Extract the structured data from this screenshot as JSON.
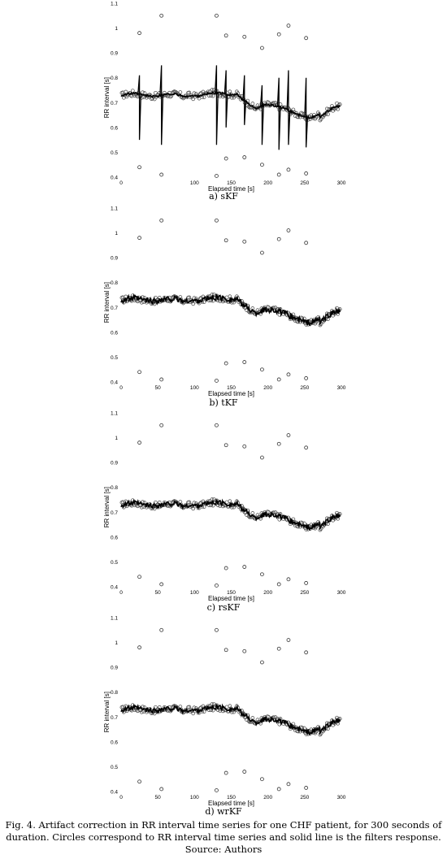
{
  "caption": "Fig. 4. Artifact correction in RR interval time series for one CHF patient, for 300 seconds of duration. Circles correspond to RR interval time series and solid line is the filters response. Source: Authors",
  "chart_data": [
    {
      "type": "scatter",
      "panel_label": "a) sKF",
      "xlabel": "Elapsed time [s]",
      "ylabel": "RR interval [s]",
      "xlim": [
        0,
        300
      ],
      "ylim": [
        0.4,
        1.1
      ],
      "xticks": [
        "0",
        "100",
        "150",
        "200",
        "250",
        "300"
      ],
      "yticks": [
        "0.4",
        "0.5",
        "0.6",
        "0.7",
        "0.8",
        "0.9",
        "1",
        "1.1"
      ],
      "outliers": {
        "x": [
          25,
          55,
          130,
          143,
          168,
          192,
          215,
          228,
          252
        ],
        "y": [
          0.98,
          1.05,
          1.05,
          0.97,
          0.965,
          0.92,
          0.975,
          1.01,
          0.96
        ]
      },
      "low_outliers": {
        "x": [
          25,
          55,
          130,
          143,
          168,
          192,
          215,
          228,
          252
        ],
        "y": [
          0.44,
          0.41,
          0.405,
          0.475,
          0.48,
          0.45,
          0.41,
          0.43,
          0.415
        ]
      },
      "filter_spikes": {
        "x": [
          25,
          55,
          130,
          143,
          168,
          192,
          215,
          228,
          252
        ],
        "high": [
          0.81,
          0.85,
          0.85,
          0.83,
          0.81,
          0.77,
          0.8,
          0.83,
          0.8
        ],
        "low": [
          0.55,
          0.53,
          0.53,
          0.6,
          0.61,
          0.53,
          0.51,
          0.53,
          0.52
        ]
      }
    },
    {
      "type": "scatter",
      "panel_label": "b) tKF",
      "xlabel": "Elapsed time [s]",
      "ylabel": "RR interval [s]",
      "xlim": [
        0,
        300
      ],
      "ylim": [
        0.4,
        1.1
      ],
      "xticks": [
        "0",
        "50",
        "100",
        "150",
        "200",
        "250",
        "300"
      ],
      "yticks": [
        "0.4",
        "0.5",
        "0.6",
        "0.7",
        "0.8",
        "0.9",
        "1",
        "1.1"
      ],
      "outliers": {
        "x": [
          25,
          55,
          130,
          143,
          168,
          192,
          215,
          228,
          252
        ],
        "y": [
          0.98,
          1.05,
          1.05,
          0.97,
          0.965,
          0.92,
          0.975,
          1.01,
          0.96
        ]
      },
      "low_outliers": {
        "x": [
          25,
          55,
          130,
          143,
          168,
          192,
          215,
          228,
          252
        ],
        "y": [
          0.44,
          0.41,
          0.405,
          0.475,
          0.48,
          0.45,
          0.41,
          0.43,
          0.415
        ]
      }
    },
    {
      "type": "scatter",
      "panel_label": "c) rsKF",
      "xlabel": "Elapsed time [s]",
      "ylabel": "RR interval [s]",
      "xlim": [
        0,
        300
      ],
      "ylim": [
        0.4,
        1.1
      ],
      "xticks": [
        "0",
        "50",
        "100",
        "150",
        "200",
        "250",
        "300"
      ],
      "yticks": [
        "0.4",
        "0.5",
        "0.6",
        "0.7",
        "0.8",
        "0.9",
        "1",
        "1.1"
      ],
      "outliers": {
        "x": [
          25,
          55,
          130,
          143,
          168,
          192,
          215,
          228,
          252
        ],
        "y": [
          0.98,
          1.05,
          1.05,
          0.97,
          0.965,
          0.92,
          0.975,
          1.01,
          0.96
        ]
      },
      "low_outliers": {
        "x": [
          25,
          55,
          130,
          143,
          168,
          192,
          215,
          228,
          252
        ],
        "y": [
          0.44,
          0.41,
          0.405,
          0.475,
          0.48,
          0.45,
          0.41,
          0.43,
          0.415
        ]
      }
    },
    {
      "type": "scatter",
      "panel_label": "d) wrKF",
      "xlabel": "Elapsed time [s]",
      "ylabel": "RR interval [s]",
      "xlim": [
        0,
        300
      ],
      "ylim": [
        0.4,
        1.1
      ],
      "xticks": [
        "0",
        "50",
        "100",
        "150",
        "200",
        "250",
        "300"
      ],
      "yticks": [
        "0.4",
        "0.5",
        "0.6",
        "0.7",
        "0.8",
        "0.9",
        "1",
        "1.1"
      ],
      "outliers": {
        "x": [
          25,
          55,
          130,
          143,
          168,
          192,
          215,
          228,
          252
        ],
        "y": [
          0.98,
          1.05,
          1.05,
          0.97,
          0.965,
          0.92,
          0.975,
          1.01,
          0.96
        ]
      },
      "low_outliers": {
        "x": [
          25,
          55,
          130,
          143,
          168,
          192,
          215,
          228,
          252
        ],
        "y": [
          0.44,
          0.41,
          0.405,
          0.475,
          0.48,
          0.45,
          0.41,
          0.43,
          0.415
        ]
      }
    }
  ]
}
